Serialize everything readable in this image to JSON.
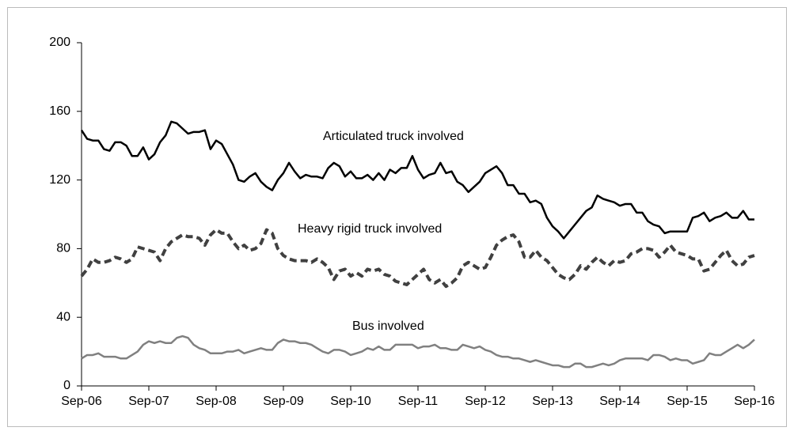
{
  "chart_data": {
    "type": "line",
    "categories": [
      "Sep-06",
      null,
      null,
      null,
      null,
      null,
      null,
      null,
      null,
      null,
      null,
      null,
      "Sep-07",
      null,
      null,
      null,
      null,
      null,
      null,
      null,
      null,
      null,
      null,
      null,
      "Sep-08",
      null,
      null,
      null,
      null,
      null,
      null,
      null,
      null,
      null,
      null,
      null,
      "Sep-09",
      null,
      null,
      null,
      null,
      null,
      null,
      null,
      null,
      null,
      null,
      null,
      "Sep-10",
      null,
      null,
      null,
      null,
      null,
      null,
      null,
      null,
      null,
      null,
      null,
      "Sep-11",
      null,
      null,
      null,
      null,
      null,
      null,
      null,
      null,
      null,
      null,
      null,
      "Sep-12",
      null,
      null,
      null,
      null,
      null,
      null,
      null,
      null,
      null,
      null,
      null,
      "Sep-13",
      null,
      null,
      null,
      null,
      null,
      null,
      null,
      null,
      null,
      null,
      null,
      "Sep-14",
      null,
      null,
      null,
      null,
      null,
      null,
      null,
      null,
      null,
      null,
      null,
      "Sep-15",
      null,
      null,
      null,
      null,
      null,
      null,
      null,
      null,
      null,
      null,
      null,
      "Sep-16"
    ],
    "series": [
      {
        "name": "Articulated truck involved",
        "color": "#000000",
        "dashed": false,
        "values": [
          149,
          144,
          143,
          143,
          138,
          137,
          142,
          142,
          140,
          134,
          134,
          139,
          132,
          135,
          142,
          146,
          154,
          153,
          150,
          147,
          148,
          148,
          149,
          138,
          143,
          141,
          135,
          129,
          120,
          119,
          122,
          124,
          119,
          116,
          114,
          120,
          124,
          130,
          125,
          121,
          123,
          122,
          122,
          121,
          127,
          130,
          128,
          122,
          125,
          121,
          121,
          123,
          120,
          124,
          120,
          126,
          124,
          127,
          127,
          134,
          126,
          121,
          123,
          124,
          130,
          124,
          125,
          119,
          117,
          113,
          116,
          119,
          124,
          126,
          128,
          124,
          117,
          117,
          112,
          112,
          107,
          108,
          106,
          98,
          93,
          90,
          86,
          90,
          94,
          98,
          102,
          104,
          111,
          109,
          108,
          107,
          105,
          106,
          106,
          101,
          101,
          96,
          94,
          93,
          89,
          90,
          90,
          90,
          90,
          98,
          99,
          101,
          96,
          98,
          99,
          101,
          98,
          98,
          102,
          97,
          97
        ]
      },
      {
        "name": "Heavy rigid truck involved",
        "color": "#404040",
        "dashed": true,
        "values": [
          64,
          68,
          74,
          72,
          72,
          73,
          75,
          74,
          72,
          74,
          81,
          80,
          79,
          78,
          73,
          80,
          84,
          86,
          88,
          87,
          87,
          86,
          82,
          88,
          91,
          89,
          89,
          84,
          80,
          82,
          79,
          80,
          83,
          91,
          89,
          80,
          76,
          74,
          73,
          73,
          73,
          72,
          74,
          72,
          69,
          62,
          67,
          68,
          64,
          66,
          64,
          68,
          67,
          68,
          65,
          64,
          61,
          60,
          59,
          62,
          65,
          68,
          62,
          60,
          62,
          58,
          60,
          63,
          70,
          72,
          70,
          68,
          69,
          75,
          82,
          85,
          87,
          88,
          84,
          75,
          75,
          79,
          75,
          73,
          69,
          65,
          63,
          62,
          65,
          70,
          68,
          72,
          75,
          72,
          70,
          73,
          72,
          73,
          77,
          78,
          80,
          80,
          79,
          75,
          78,
          82,
          78,
          77,
          76,
          74,
          74,
          67,
          68,
          72,
          76,
          79,
          73,
          70,
          71,
          75,
          76
        ]
      },
      {
        "name": "Bus involved",
        "color": "#808080",
        "dashed": false,
        "values": [
          16,
          18,
          18,
          19,
          17,
          17,
          17,
          16,
          16,
          18,
          20,
          24,
          26,
          25,
          26,
          25,
          25,
          28,
          29,
          28,
          24,
          22,
          21,
          19,
          19,
          19,
          20,
          20,
          21,
          19,
          20,
          21,
          22,
          21,
          21,
          25,
          27,
          26,
          26,
          25,
          25,
          24,
          22,
          20,
          19,
          21,
          21,
          20,
          18,
          19,
          20,
          22,
          21,
          23,
          21,
          21,
          24,
          24,
          24,
          24,
          22,
          23,
          23,
          24,
          22,
          22,
          21,
          21,
          24,
          23,
          22,
          23,
          21,
          20,
          18,
          17,
          17,
          16,
          16,
          15,
          14,
          15,
          14,
          13,
          12,
          12,
          11,
          11,
          13,
          13,
          11,
          11,
          12,
          13,
          12,
          13,
          15,
          16,
          16,
          16,
          16,
          15,
          18,
          18,
          17,
          15,
          16,
          15,
          15,
          13,
          14,
          15,
          19,
          18,
          18,
          20,
          22,
          24,
          22,
          24,
          27
        ]
      }
    ],
    "ylim": [
      0,
      200
    ],
    "yticks": [
      0,
      40,
      80,
      120,
      160,
      200
    ],
    "grid": false
  }
}
